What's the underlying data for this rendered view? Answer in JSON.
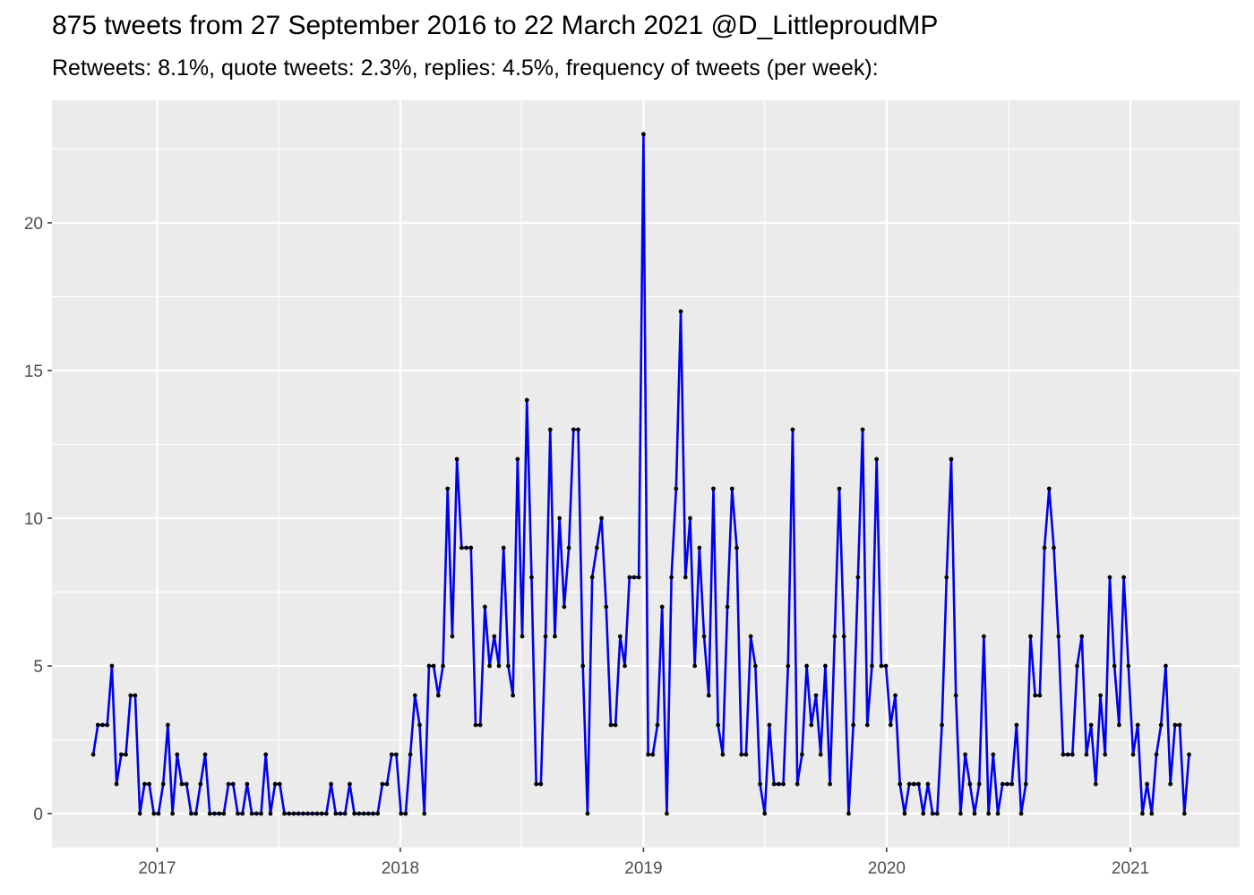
{
  "chart_data": {
    "type": "line",
    "title": "875 tweets from 27 September 2016 to 22 March 2021 @D_LittleproudMP",
    "subtitle": "Retweets: 8.1%, quote tweets: 2.3%, replies: 4.5%, frequency of tweets (per week):",
    "xlabel": "",
    "ylabel": "",
    "x_range": [
      "2016-07-27",
      "2021-06-14"
    ],
    "ylim": [
      -1.15,
      24.15
    ],
    "x_ticks": [
      {
        "label": "2017",
        "date": "2017-01-01"
      },
      {
        "label": "2018",
        "date": "2018-01-01"
      },
      {
        "label": "2019",
        "date": "2019-01-01"
      },
      {
        "label": "2020",
        "date": "2020-01-01"
      },
      {
        "label": "2021",
        "date": "2021-01-01"
      }
    ],
    "y_ticks": [
      0,
      5,
      10,
      15,
      20
    ],
    "grid": true,
    "background": "#ebebeb",
    "gridline_color": "#ffffff",
    "line_color": "#0000ee",
    "point_color": "#000000",
    "series": [
      {
        "start_date": "2016-09-27",
        "interval_days": 7,
        "values": [
          2,
          3,
          3,
          3,
          5,
          1,
          2,
          2,
          4,
          4,
          0,
          1,
          1,
          0,
          0,
          1,
          3,
          0,
          2,
          1,
          1,
          0,
          0,
          1,
          2,
          0,
          0,
          0,
          0,
          1,
          1,
          0,
          0,
          1,
          0,
          0,
          0,
          2,
          0,
          1,
          1,
          0,
          0,
          0,
          0,
          0,
          0,
          0,
          0,
          0,
          0,
          1,
          0,
          0,
          0,
          1,
          0,
          0,
          0,
          0,
          0,
          0,
          1,
          1,
          2,
          2,
          0,
          0,
          2,
          4,
          3,
          0,
          5,
          5,
          4,
          5,
          11,
          6,
          12,
          9,
          9,
          9,
          3,
          3,
          7,
          5,
          6,
          5,
          9,
          5,
          4,
          12,
          6,
          14,
          8,
          1,
          1,
          6,
          13,
          6,
          10,
          7,
          9,
          13,
          13,
          5,
          0,
          8,
          9,
          10,
          7,
          3,
          3,
          6,
          5,
          8,
          8,
          8,
          23,
          2,
          2,
          3,
          7,
          0,
          8,
          11,
          17,
          8,
          10,
          5,
          9,
          6,
          4,
          11,
          3,
          2,
          7,
          11,
          9,
          2,
          2,
          6,
          5,
          1,
          0,
          3,
          1,
          1,
          1,
          5,
          13,
          1,
          2,
          5,
          3,
          4,
          2,
          5,
          1,
          6,
          11,
          6,
          0,
          3,
          8,
          13,
          3,
          5,
          12,
          5,
          5,
          3,
          4,
          1,
          0,
          1,
          1,
          1,
          0,
          1,
          0,
          0,
          3,
          8,
          12,
          4,
          0,
          2,
          1,
          0,
          1,
          6,
          0,
          2,
          0,
          1,
          1,
          1,
          3,
          0,
          1,
          6,
          4,
          4,
          9,
          11,
          9,
          6,
          2,
          2,
          2,
          5,
          6,
          2,
          3,
          1,
          4,
          2,
          8,
          5,
          3,
          8,
          5,
          2,
          3,
          0,
          1,
          0,
          2,
          3,
          5,
          1,
          3,
          3,
          0,
          2
        ]
      }
    ]
  }
}
